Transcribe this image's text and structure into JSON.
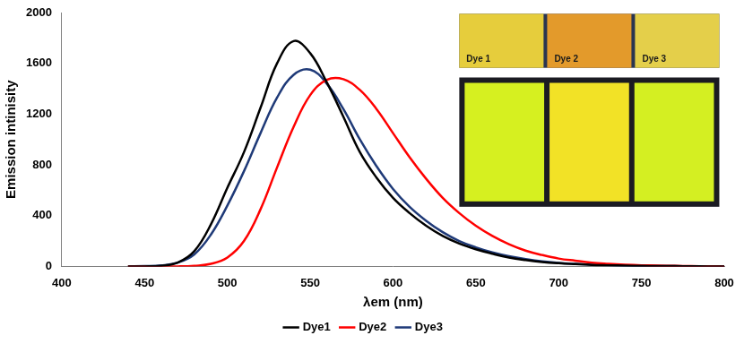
{
  "chart_data": {
    "type": "line",
    "x_label": "λem (nm)",
    "y_label": "Emission intinisity",
    "annotations": [
      "Dye 1",
      "Dye 2",
      "Dye 3"
    ],
    "x": [
      440,
      450,
      460,
      470,
      480,
      490,
      500,
      510,
      520,
      530,
      540,
      550,
      560,
      570,
      580,
      590,
      600,
      610,
      620,
      630,
      640,
      650,
      660,
      670,
      680,
      690,
      700,
      710,
      720,
      730,
      740,
      750,
      760,
      770,
      780,
      790,
      800
    ],
    "series": [
      {
        "name": "Dye1",
        "color": "#000000",
        "values": [
          0,
          0,
          5,
          30,
          120,
          330,
          620,
          900,
          1250,
          1600,
          1775,
          1680,
          1450,
          1180,
          900,
          700,
          540,
          420,
          320,
          240,
          180,
          135,
          100,
          70,
          50,
          35,
          25,
          18,
          12,
          9,
          6,
          4,
          3,
          2,
          1,
          0,
          0
        ]
      },
      {
        "name": "Dye2",
        "color": "#ff0000",
        "values": [
          0,
          0,
          0,
          0,
          5,
          20,
          70,
          200,
          450,
          780,
          1100,
          1350,
          1470,
          1475,
          1390,
          1240,
          1050,
          860,
          690,
          540,
          420,
          320,
          240,
          175,
          125,
          90,
          62,
          45,
          30,
          21,
          14,
          9,
          6,
          4,
          2,
          1,
          0
        ]
      },
      {
        "name": "Dye3",
        "color": "#1f3a78",
        "values": [
          0,
          2,
          8,
          30,
          95,
          250,
          480,
          750,
          1050,
          1330,
          1510,
          1550,
          1440,
          1240,
          1000,
          790,
          610,
          470,
          360,
          270,
          200,
          150,
          110,
          80,
          58,
          40,
          28,
          20,
          14,
          10,
          7,
          5,
          3,
          2,
          1,
          0,
          0
        ]
      }
    ],
    "xlim": [
      400,
      800
    ],
    "xticks": [
      400,
      450,
      500,
      550,
      600,
      650,
      700,
      750,
      800
    ],
    "ylim": [
      0,
      2000
    ],
    "yticks": [
      0,
      400,
      800,
      1200,
      1600,
      2000
    ],
    "grid": false,
    "legend": "bottom"
  }
}
